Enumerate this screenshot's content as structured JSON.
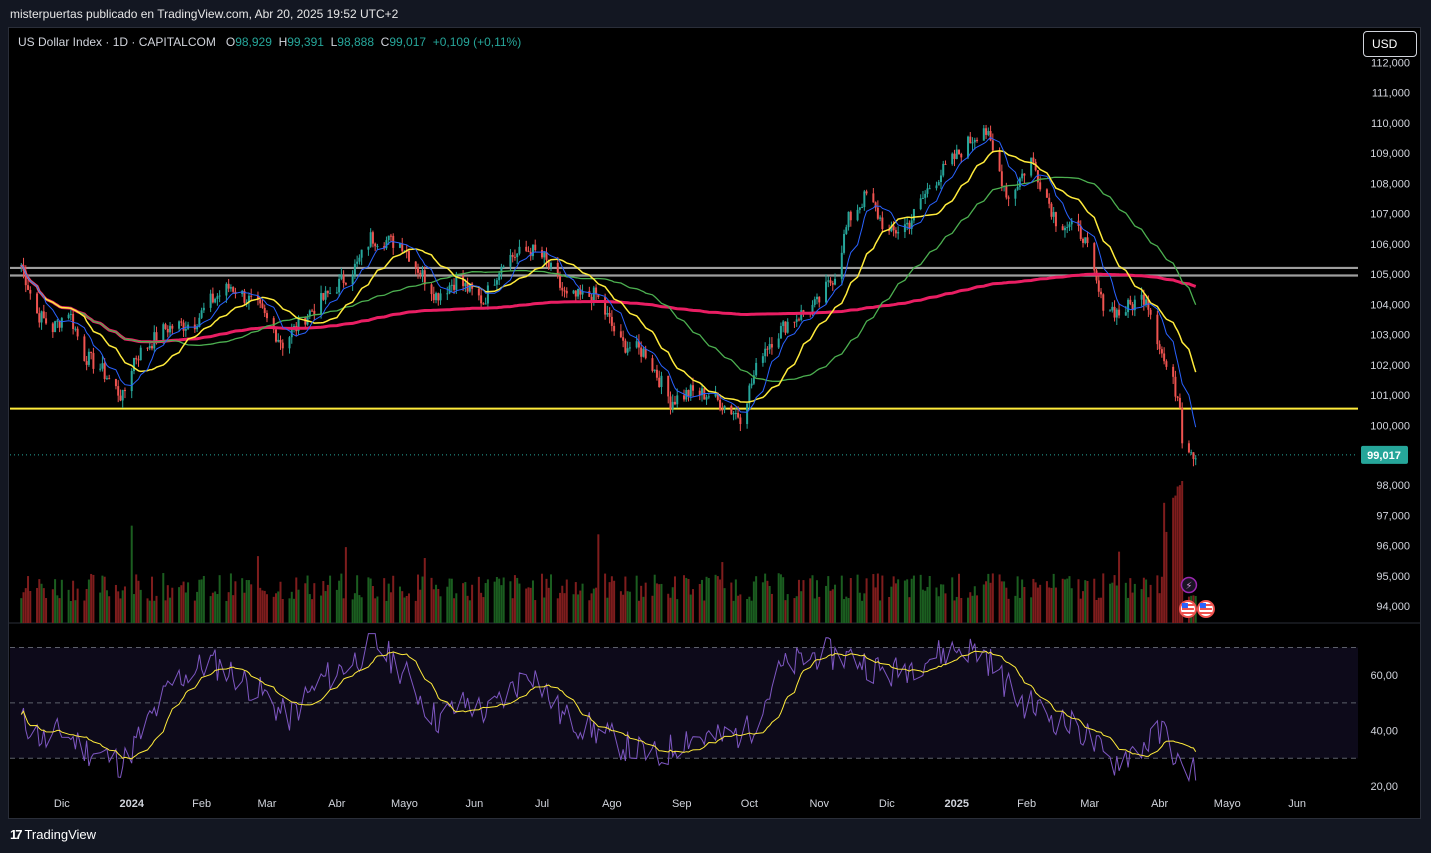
{
  "header": {
    "publisher_text": "misterpuertas publicado en TradingView.com, Abr 20, 2025 19:52 UTC+2"
  },
  "legend": {
    "symbol": "US Dollar Index · 1D · CAPITALCOM",
    "open_label": "O",
    "open": "98,929",
    "high_label": "H",
    "high": "99,391",
    "low_label": "L",
    "low": "98,888",
    "close_label": "C",
    "close": "99,017",
    "change": "+0,109 (+0,11%)"
  },
  "currency_button": "USD",
  "footer": {
    "brand": "TradingView",
    "logo_icon": "tradingview-logo-icon"
  },
  "icons": {
    "lightning": "lightning-icon",
    "flag_us": "us-flag-icon"
  },
  "colors": {
    "up": "#26a69a",
    "down": "#ef5350",
    "ma_fast": "#2962ff",
    "ma_mid": "#ffeb3b",
    "ma_slow": "#4caf50",
    "ma_200": "#e91e63",
    "support": "#ffeb3b",
    "resistance": "#9e9e9e",
    "rsi": "#7e57c2",
    "rsi_ma": "#ffeb3b",
    "last_price_bg": "#26a69a"
  },
  "chart_data": [
    {
      "type": "candlestick",
      "title": "US Dollar Index · 1D · CAPITALCOM",
      "y_axis_ticks": [
        "112,000",
        "111,000",
        "110,000",
        "109,000",
        "108,000",
        "107,000",
        "106,000",
        "105,000",
        "104,000",
        "103,000",
        "102,000",
        "101,000",
        "100,000",
        "98,000",
        "97,000",
        "96,000",
        "95,000",
        "94,000"
      ],
      "x_axis_ticks": [
        "Dic",
        "2024",
        "Feb",
        "Mar",
        "Abr",
        "Mayo",
        "Jun",
        "Jul",
        "Ago",
        "Sep",
        "Oct",
        "Nov",
        "Dic",
        "2025",
        "Feb",
        "Mar",
        "Abr",
        "Mayo",
        "Jun"
      ],
      "last_price_label": "99,017",
      "close_path_points": [
        [
          "2023-11-13",
          105.3
        ],
        [
          "2023-11-20",
          103.7
        ],
        [
          "2023-11-27",
          103.2
        ],
        [
          "2023-12-04",
          103.8
        ],
        [
          "2023-12-11",
          102.3
        ],
        [
          "2023-12-18",
          101.9
        ],
        [
          "2023-12-26",
          101.1
        ],
        [
          "2023-12-28",
          100.9
        ],
        [
          "2024-01-02",
          102.2
        ],
        [
          "2024-01-16",
          103.2
        ],
        [
          "2024-01-29",
          103.4
        ],
        [
          "2024-02-05",
          104.1
        ],
        [
          "2024-02-14",
          104.6
        ],
        [
          "2024-02-26",
          103.9
        ],
        [
          "2024-03-08",
          102.7
        ],
        [
          "2024-03-18",
          103.6
        ],
        [
          "2024-04-01",
          104.6
        ],
        [
          "2024-04-10",
          105.3
        ],
        [
          "2024-04-16",
          106.2
        ],
        [
          "2024-04-30",
          106.0
        ],
        [
          "2024-05-06",
          105.3
        ],
        [
          "2024-05-15",
          104.3
        ],
        [
          "2024-05-24",
          104.8
        ],
        [
          "2024-06-05",
          104.1
        ],
        [
          "2024-06-14",
          105.5
        ],
        [
          "2024-06-26",
          105.8
        ],
        [
          "2024-07-02",
          105.5
        ],
        [
          "2024-07-12",
          104.2
        ],
        [
          "2024-07-25",
          104.3
        ],
        [
          "2024-08-05",
          102.7
        ],
        [
          "2024-08-16",
          102.4
        ],
        [
          "2024-08-27",
          100.8
        ],
        [
          "2024-09-05",
          101.1
        ],
        [
          "2024-09-13",
          101.0
        ],
        [
          "2024-09-27",
          100.3
        ],
        [
          "2024-10-07",
          102.5
        ],
        [
          "2024-10-18",
          103.4
        ],
        [
          "2024-10-31",
          104.0
        ],
        [
          "2024-11-08",
          105.0
        ],
        [
          "2024-11-14",
          106.8
        ],
        [
          "2024-11-22",
          107.6
        ],
        [
          "2024-12-02",
          106.3
        ],
        [
          "2024-12-11",
          106.7
        ],
        [
          "2024-12-20",
          107.9
        ],
        [
          "2025-01-02",
          109.0
        ],
        [
          "2025-01-13",
          109.9
        ],
        [
          "2025-01-24",
          107.5
        ],
        [
          "2025-02-03",
          108.8
        ],
        [
          "2025-02-14",
          106.8
        ],
        [
          "2025-02-26",
          106.3
        ],
        [
          "2025-03-06",
          104.1
        ],
        [
          "2025-03-14",
          103.7
        ],
        [
          "2025-03-26",
          104.3
        ],
        [
          "2025-04-03",
          102.1
        ],
        [
          "2025-04-10",
          100.8
        ],
        [
          "2025-04-11",
          99.6
        ],
        [
          "2025-04-17",
          99.0
        ]
      ],
      "horizontal_lines": [
        {
          "name": "support",
          "value": 100.55
        },
        {
          "name": "resistance-upper",
          "value": 105.2
        },
        {
          "name": "resistance-lower",
          "value": 104.95
        }
      ],
      "moving_averages": [
        "blue fast MA",
        "yellow MA",
        "green MA",
        "magenta 200-day MA"
      ]
    },
    {
      "type": "bar",
      "title": "Volume",
      "note": "volume histogram below price, green/red by candle direction"
    },
    {
      "type": "line",
      "title": "RSI",
      "y_axis_ticks": [
        "60,00",
        "40,00",
        "20,00"
      ],
      "band_levels": [
        70,
        50,
        30
      ],
      "rsi_points": [
        [
          "2023-11-13",
          44
        ],
        [
          "2023-11-24",
          36
        ],
        [
          "2023-12-01",
          40
        ],
        [
          "2023-12-12",
          33
        ],
        [
          "2023-12-20",
          31
        ],
        [
          "2023-12-28",
          28
        ],
        [
          "2024-01-10",
          45
        ],
        [
          "2024-01-20",
          58
        ],
        [
          "2024-02-05",
          65
        ],
        [
          "2024-02-16",
          60
        ],
        [
          "2024-03-01",
          52
        ],
        [
          "2024-03-10",
          44
        ],
        [
          "2024-03-25",
          58
        ],
        [
          "2024-04-10",
          66
        ],
        [
          "2024-04-17",
          72
        ],
        [
          "2024-04-30",
          62
        ],
        [
          "2024-05-15",
          44
        ],
        [
          "2024-05-29",
          50
        ],
        [
          "2024-06-07",
          46
        ],
        [
          "2024-06-26",
          62
        ],
        [
          "2024-07-10",
          45
        ],
        [
          "2024-07-25",
          40
        ],
        [
          "2024-08-05",
          35
        ],
        [
          "2024-08-22",
          30
        ],
        [
          "2024-09-03",
          38
        ],
        [
          "2024-09-17",
          37
        ],
        [
          "2024-10-01",
          40
        ],
        [
          "2024-10-15",
          62
        ],
        [
          "2024-11-01",
          68
        ],
        [
          "2024-11-18",
          66
        ],
        [
          "2024-12-02",
          60
        ],
        [
          "2024-12-18",
          66
        ],
        [
          "2025-01-03",
          70
        ],
        [
          "2025-01-13",
          68
        ],
        [
          "2025-01-27",
          52
        ],
        [
          "2025-02-10",
          46
        ],
        [
          "2025-02-27",
          39
        ],
        [
          "2025-03-10",
          28
        ],
        [
          "2025-03-25",
          35
        ],
        [
          "2025-04-04",
          40
        ],
        [
          "2025-04-11",
          24
        ],
        [
          "2025-04-17",
          27
        ]
      ]
    }
  ]
}
